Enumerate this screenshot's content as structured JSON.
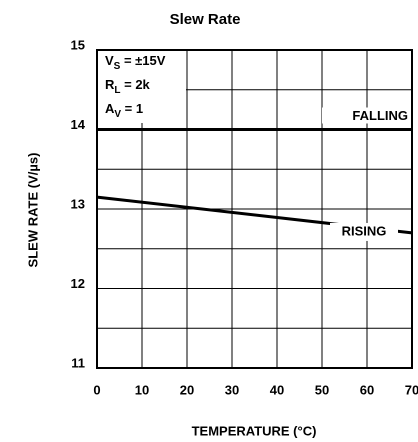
{
  "chart_data": {
    "type": "line",
    "title": "Slew Rate",
    "x_label": "TEMPERATURE (°C)",
    "y_label": "SLEW RATE (V/µs)",
    "xlim": [
      0,
      70
    ],
    "xticks": [
      0,
      10,
      20,
      30,
      40,
      50,
      60,
      70
    ],
    "ylim": [
      11,
      15
    ],
    "yticks": [
      11,
      12,
      13,
      14,
      15
    ],
    "yminor": [
      11.5,
      12.5,
      13.5,
      14.5
    ],
    "grid": true,
    "annotations": [
      {
        "main": "V",
        "sub": "S",
        "rest": " = ±15V"
      },
      {
        "main": "R",
        "sub": "L",
        "rest": " = 2k"
      },
      {
        "main": "A",
        "sub": "V",
        "rest": " = 1"
      }
    ],
    "x": [
      0,
      70
    ],
    "series": [
      {
        "name": "FALLING",
        "color": "#000000",
        "values": [
          14,
          14
        ]
      },
      {
        "name": "RISING",
        "color": "#000000",
        "values": [
          13.15,
          12.7
        ]
      }
    ]
  }
}
